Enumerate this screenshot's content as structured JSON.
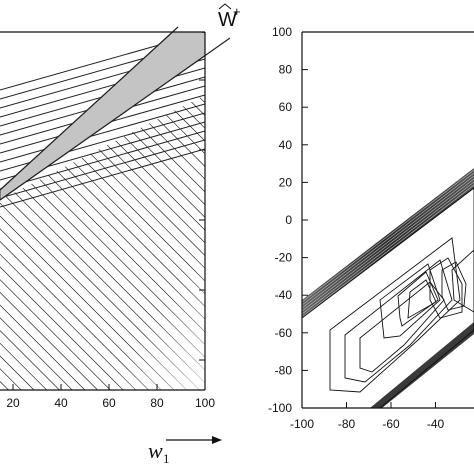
{
  "left_panel": {
    "x_ticks": [
      "20",
      "40",
      "60",
      "80",
      "100"
    ],
    "x_axis_variable": "w",
    "x_axis_subscript": "1",
    "region_label": "W",
    "region_label_superscript": "+"
  },
  "right_panel": {
    "y_ticks": [
      "100",
      "80",
      "60",
      "40",
      "20",
      "0",
      "-20",
      "-40",
      "-60",
      "-80",
      "-100"
    ],
    "x_ticks": [
      "-100",
      "-80",
      "-60",
      "-40"
    ]
  }
}
